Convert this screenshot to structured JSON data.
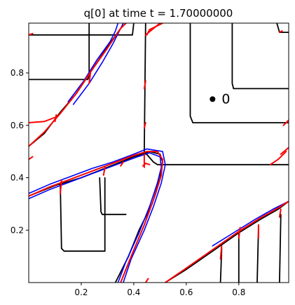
{
  "chart_data": {
    "type": "line",
    "title": "q[0] at time t =     1.70000000",
    "xlabel": "",
    "ylabel": "",
    "xlim": [
      0.0,
      0.99
    ],
    "ylim": [
      0.0,
      0.99
    ],
    "xticks": [
      0.2,
      0.4,
      0.6,
      0.8
    ],
    "yticks": [
      0.2,
      0.4,
      0.6,
      0.8
    ],
    "xtick_labels": [
      "0.2",
      "0.4",
      "0.6",
      "0.8"
    ],
    "ytick_labels": [
      "0.2",
      "0.4",
      "0.6",
      "0.8"
    ],
    "grid": false,
    "legend": "none",
    "annotations": [
      {
        "text": "0",
        "x": 0.7,
        "y": 0.7,
        "marker": "dot"
      }
    ],
    "series_colors": {
      "black": "#000000",
      "blue": "#0000ff",
      "red": "#ff0000"
    },
    "series": [
      {
        "color": "#000000",
        "lines": [
          [
            [
              0.0,
              0.945
            ],
            [
              0.395,
              0.945
            ],
            [
              0.4,
              0.99
            ]
          ],
          [
            [
              0.0,
              0.775
            ],
            [
              0.225,
              0.775
            ],
            [
              0.23,
              0.79
            ],
            [
              0.23,
              0.99
            ]
          ],
          [
            [
              0.945,
              0.99
            ],
            [
              0.955,
              0.955
            ],
            [
              0.99,
              0.955
            ]
          ],
          [
            [
              0.99,
              0.74
            ],
            [
              0.78,
              0.74
            ],
            [
              0.775,
              0.76
            ],
            [
              0.775,
              0.99
            ]
          ],
          [
            [
              0.99,
              0.61
            ],
            [
              0.625,
              0.61
            ],
            [
              0.615,
              0.635
            ],
            [
              0.615,
              0.99
            ]
          ],
          [
            [
              0.99,
              0.45
            ],
            [
              0.49,
              0.45
            ],
            [
              0.475,
              0.46
            ],
            [
              0.44,
              0.5
            ]
          ],
          [
            [
              0.44,
              0.5
            ],
            [
              0.445,
              0.99
            ]
          ],
          [
            [
              0.0,
              0.33
            ],
            [
              0.1,
              0.37
            ],
            [
              0.2,
              0.4
            ],
            [
              0.3,
              0.44
            ],
            [
              0.4,
              0.48
            ],
            [
              0.46,
              0.5
            ],
            [
              0.5,
              0.49
            ],
            [
              0.51,
              0.46
            ],
            [
              0.5,
              0.4
            ],
            [
              0.47,
              0.3
            ],
            [
              0.42,
              0.2
            ],
            [
              0.38,
              0.1
            ],
            [
              0.33,
              0.0
            ]
          ],
          [
            [
              0.12,
              0.38
            ],
            [
              0.125,
              0.13
            ],
            [
              0.135,
              0.12
            ],
            [
              0.29,
              0.12
            ],
            [
              0.29,
              0.4
            ]
          ],
          [
            [
              0.27,
              0.4
            ],
            [
              0.275,
              0.27
            ],
            [
              0.28,
              0.26
            ],
            [
              0.37,
              0.26
            ]
          ],
          [
            [
              0.0,
              0.52
            ],
            [
              0.06,
              0.57
            ],
            [
              0.12,
              0.65
            ],
            [
              0.18,
              0.72
            ],
            [
              0.24,
              0.81
            ],
            [
              0.3,
              0.9
            ],
            [
              0.35,
              0.97
            ],
            [
              0.37,
              0.99
            ]
          ],
          [
            [
              0.52,
              0.0
            ],
            [
              0.6,
              0.05
            ],
            [
              0.7,
              0.12
            ],
            [
              0.8,
              0.19
            ],
            [
              0.88,
              0.24
            ],
            [
              0.95,
              0.28
            ],
            [
              0.99,
              0.31
            ]
          ],
          [
            [
              0.73,
              0.0
            ],
            [
              0.735,
              0.13
            ]
          ],
          [
            [
              0.8,
              0.0
            ],
            [
              0.8,
              0.19
            ]
          ],
          [
            [
              0.87,
              0.0
            ],
            [
              0.875,
              0.21
            ]
          ],
          [
            [
              0.955,
              0.0
            ],
            [
              0.96,
              0.26
            ]
          ]
        ]
      },
      {
        "color": "#0000ff",
        "lines": [
          [
            [
              0.0,
              0.32
            ],
            [
              0.08,
              0.355
            ],
            [
              0.16,
              0.385
            ],
            [
              0.24,
              0.415
            ],
            [
              0.32,
              0.445
            ],
            [
              0.4,
              0.475
            ],
            [
              0.46,
              0.495
            ],
            [
              0.5,
              0.48
            ],
            [
              0.505,
              0.44
            ],
            [
              0.49,
              0.38
            ],
            [
              0.46,
              0.29
            ],
            [
              0.42,
              0.19
            ],
            [
              0.37,
              0.08
            ],
            [
              0.34,
              0.0
            ]
          ],
          [
            [
              0.0,
              0.34
            ],
            [
              0.08,
              0.375
            ],
            [
              0.16,
              0.405
            ],
            [
              0.24,
              0.435
            ],
            [
              0.32,
              0.46
            ],
            [
              0.4,
              0.49
            ],
            [
              0.45,
              0.51
            ],
            [
              0.51,
              0.5
            ],
            [
              0.52,
              0.45
            ],
            [
              0.505,
              0.38
            ],
            [
              0.475,
              0.29
            ],
            [
              0.44,
              0.2
            ],
            [
              0.39,
              0.09
            ],
            [
              0.36,
              0.0
            ]
          ],
          [
            [
              0.15,
              0.69
            ],
            [
              0.21,
              0.77
            ],
            [
              0.26,
              0.85
            ],
            [
              0.31,
              0.92
            ],
            [
              0.33,
              0.96
            ],
            [
              0.34,
              0.99
            ]
          ],
          [
            [
              0.17,
              0.68
            ],
            [
              0.23,
              0.76
            ],
            [
              0.28,
              0.84
            ],
            [
              0.32,
              0.91
            ],
            [
              0.35,
              0.97
            ],
            [
              0.36,
              0.99
            ]
          ],
          [
            [
              0.7,
              0.14
            ],
            [
              0.78,
              0.19
            ],
            [
              0.86,
              0.24
            ],
            [
              0.93,
              0.28
            ],
            [
              0.99,
              0.31
            ]
          ]
        ]
      },
      {
        "color": "#ff0000",
        "lines": [
          [
            [
              0.0,
              0.33
            ],
            [
              0.08,
              0.365
            ],
            [
              0.16,
              0.395
            ],
            [
              0.24,
              0.425
            ],
            [
              0.32,
              0.455
            ],
            [
              0.4,
              0.485
            ],
            [
              0.45,
              0.5
            ],
            [
              0.49,
              0.5
            ],
            [
              0.51,
              0.47
            ],
            [
              0.505,
              0.41
            ],
            [
              0.48,
              0.33
            ],
            [
              0.44,
              0.22
            ],
            [
              0.39,
              0.1
            ],
            [
              0.35,
              0.0
            ]
          ],
          [
            [
              0.0,
              0.52
            ],
            [
              0.06,
              0.575
            ],
            [
              0.12,
              0.645
            ],
            [
              0.18,
              0.72
            ],
            [
              0.24,
              0.81
            ],
            [
              0.3,
              0.895
            ],
            [
              0.35,
              0.97
            ],
            [
              0.37,
              0.99
            ]
          ],
          [
            [
              0.0,
              0.61
            ],
            [
              0.06,
              0.615
            ],
            [
              0.1,
              0.63
            ]
          ],
          [
            [
              0.1,
              0.615
            ],
            [
              0.105,
              0.64
            ]
          ],
          [
            [
              0.0,
              0.47
            ],
            [
              0.015,
              0.48
            ]
          ],
          [
            [
              0.445,
              0.0
            ],
            [
              0.455,
              0.015
            ]
          ],
          [
            [
              0.45,
              0.945
            ],
            [
              0.46,
              0.965
            ],
            [
              0.51,
              0.99
            ]
          ],
          [
            [
              0.445,
              0.945
            ],
            [
              0.5,
              0.99
            ]
          ],
          [
            [
              0.435,
              0.445
            ],
            [
              0.445,
              0.455
            ],
            [
              0.46,
              0.45
            ]
          ],
          [
            [
              0.44,
              0.44
            ],
            [
              0.44,
              0.49
            ]
          ],
          [
            [
              0.12,
              0.34
            ],
            [
              0.125,
              0.39
            ]
          ],
          [
            [
              0.23,
              0.76
            ],
            [
              0.235,
              0.8
            ]
          ],
          [
            [
              0.955,
              0.955
            ],
            [
              0.965,
              0.96
            ]
          ],
          [
            [
              0.44,
              0.74
            ],
            [
              0.445,
              0.77
            ]
          ],
          [
            [
              0.44,
              0.59
            ],
            [
              0.445,
              0.61
            ]
          ],
          [
            [
              0.0,
              0.945
            ],
            [
              0.015,
              0.95
            ]
          ],
          [
            [
              0.52,
              0.0
            ],
            [
              0.6,
              0.055
            ],
            [
              0.7,
              0.125
            ],
            [
              0.8,
              0.195
            ],
            [
              0.88,
              0.245
            ],
            [
              0.95,
              0.285
            ],
            [
              0.99,
              0.31
            ]
          ],
          [
            [
              0.73,
              0.09
            ],
            [
              0.735,
              0.14
            ]
          ],
          [
            [
              0.8,
              0.17
            ],
            [
              0.805,
              0.21
            ]
          ],
          [
            [
              0.875,
              0.17
            ],
            [
              0.875,
              0.22
            ]
          ],
          [
            [
              0.955,
              0.25
            ],
            [
              0.96,
              0.28
            ]
          ],
          [
            [
              0.98,
              0.5
            ],
            [
              0.95,
              0.47
            ],
            [
              0.92,
              0.45
            ]
          ],
          [
            [
              0.99,
              0.515
            ],
            [
              0.96,
              0.49
            ]
          ],
          [
            [
              0.97,
              0.6
            ],
            [
              0.99,
              0.62
            ]
          ],
          [
            [
              0.35,
              0.445
            ],
            [
              0.36,
              0.46
            ]
          ],
          [
            [
              0.285,
              0.41
            ],
            [
              0.29,
              0.44
            ]
          ]
        ]
      }
    ]
  }
}
